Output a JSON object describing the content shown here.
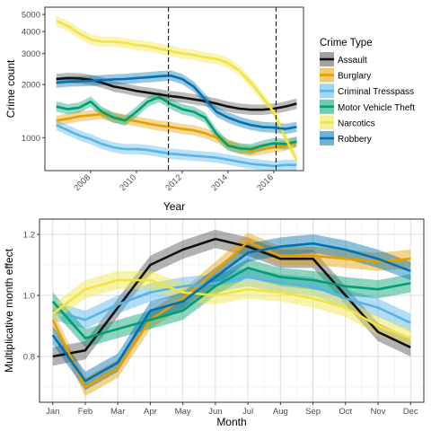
{
  "chart_data": [
    {
      "type": "line",
      "xlabel": "Year",
      "ylabel": "Crime count",
      "y_scale": "log",
      "xlim": [
        2006.0,
        2017.3
      ],
      "ylim": [
        650,
        5500
      ],
      "x_ticks": [
        2008,
        2010,
        2012,
        2014,
        2016
      ],
      "x_tick_labels": [
        "2008",
        "2010",
        "2012",
        "2014",
        "2016"
      ],
      "y_ticks": [
        1000,
        2000,
        3000,
        4000,
        5000
      ],
      "y_tick_labels": [
        "1000",
        "2000",
        "3000",
        "4000",
        "5000"
      ],
      "vlines": [
        2011.4,
        2016.1
      ],
      "grid": false,
      "legend_title": "Crime Type",
      "legend_position": "right",
      "series": [
        {
          "name": "Assault",
          "color": "#111111",
          "band_color": "#555555",
          "x": [
            2006.5,
            2007,
            2007.5,
            2008,
            2008.5,
            2009,
            2009.5,
            2010,
            2010.5,
            2011,
            2011.5,
            2012,
            2012.5,
            2013,
            2013.5,
            2014,
            2014.5,
            2015,
            2015.5,
            2016,
            2016.5,
            2017
          ],
          "y": [
            2150,
            2180,
            2170,
            2130,
            2050,
            1950,
            1900,
            1840,
            1800,
            1760,
            1720,
            1690,
            1650,
            1610,
            1560,
            1500,
            1460,
            1440,
            1440,
            1460,
            1500,
            1560
          ]
        },
        {
          "name": "Burglary",
          "color": "#e69f00",
          "band_color": "#e69f00",
          "x": [
            2006.5,
            2007,
            2007.5,
            2008,
            2008.5,
            2009,
            2009.5,
            2010,
            2010.5,
            2011,
            2011.5,
            2012,
            2012.5,
            2013,
            2013.5,
            2014,
            2014.5,
            2015,
            2015.5,
            2016,
            2016.5,
            2017
          ],
          "y": [
            1250,
            1280,
            1320,
            1340,
            1360,
            1300,
            1270,
            1240,
            1200,
            1170,
            1150,
            1120,
            1100,
            1060,
            1000,
            920,
            860,
            840,
            860,
            880,
            900,
            940
          ]
        },
        {
          "name": "Criminal Tresspass",
          "color": "#56b4e9",
          "band_color": "#56b4e9",
          "x": [
            2006.5,
            2007,
            2007.5,
            2008,
            2008.5,
            2009,
            2009.5,
            2010,
            2010.5,
            2011,
            2011.5,
            2012,
            2012.5,
            2013,
            2013.5,
            2014,
            2014.5,
            2015,
            2015.5,
            2016,
            2016.5,
            2017
          ],
          "y": [
            1180,
            1100,
            1030,
            980,
            920,
            880,
            860,
            860,
            850,
            830,
            810,
            800,
            790,
            780,
            770,
            750,
            730,
            710,
            700,
            690,
            700,
            700
          ]
        },
        {
          "name": "Motor Vehicle Theft",
          "color": "#009e73",
          "band_color": "#009e73",
          "x": [
            2006.5,
            2007,
            2007.5,
            2008,
            2008.5,
            2009,
            2009.5,
            2010,
            2010.5,
            2011,
            2011.5,
            2012,
            2012.5,
            2013,
            2013.5,
            2014,
            2014.5,
            2015,
            2015.5,
            2016,
            2016.5,
            2017
          ],
          "y": [
            1500,
            1450,
            1480,
            1600,
            1400,
            1300,
            1250,
            1400,
            1600,
            1700,
            1550,
            1450,
            1400,
            1300,
            1050,
            900,
            870,
            860,
            900,
            930,
            920,
            950
          ]
        },
        {
          "name": "Narcotics",
          "color": "#f0e442",
          "band_color": "#f0e442",
          "x": [
            2006.5,
            2007,
            2007.5,
            2008,
            2008.5,
            2009,
            2009.5,
            2010,
            2010.5,
            2011,
            2011.5,
            2012,
            2012.5,
            2013,
            2013.5,
            2014,
            2014.5,
            2015,
            2015.5,
            2016,
            2016.5,
            2017
          ],
          "y": [
            4600,
            4300,
            3900,
            3600,
            3500,
            3500,
            3450,
            3350,
            3300,
            3200,
            3100,
            3000,
            2950,
            2850,
            2800,
            2650,
            2400,
            2050,
            1700,
            1400,
            1000,
            750
          ]
        },
        {
          "name": "Robbery",
          "color": "#0072b2",
          "band_color": "#0072b2",
          "x": [
            2006.5,
            2007,
            2007.5,
            2008,
            2008.5,
            2009,
            2009.5,
            2010,
            2010.5,
            2011,
            2011.5,
            2012,
            2012.5,
            2013,
            2013.5,
            2014,
            2014.5,
            2015,
            2015.5,
            2016,
            2016.5,
            2017
          ],
          "y": [
            2050,
            2080,
            2090,
            2100,
            2120,
            2140,
            2150,
            2180,
            2200,
            2230,
            2250,
            2150,
            1950,
            1650,
            1400,
            1300,
            1230,
            1180,
            1150,
            1140,
            1120,
            1150
          ]
        }
      ]
    },
    {
      "type": "line",
      "xlabel": "Month",
      "ylabel": "Multiplicative month effect",
      "ylim": [
        0.65,
        1.25
      ],
      "y_ticks": [
        0.8,
        1.0,
        1.2
      ],
      "y_tick_labels": [
        "0.8",
        "1.0",
        "1.2"
      ],
      "categories": [
        "Jan",
        "Feb",
        "Mar",
        "Apr",
        "May",
        "Jun",
        "Jul",
        "Aug",
        "Sep",
        "Oct",
        "Nov",
        "Dec"
      ],
      "grid": true,
      "series": [
        {
          "name": "Assault",
          "color": "#111111",
          "band_color": "#555555",
          "values": [
            0.8,
            0.82,
            0.96,
            1.1,
            1.15,
            1.185,
            1.16,
            1.12,
            1.12,
            1.0,
            0.88,
            0.83
          ]
        },
        {
          "name": "Burglary",
          "color": "#e69f00",
          "band_color": "#e69f00",
          "values": [
            0.92,
            0.7,
            0.76,
            0.92,
            0.99,
            1.08,
            1.175,
            1.13,
            1.13,
            1.12,
            1.11,
            1.12
          ]
        },
        {
          "name": "Criminal Tresspass",
          "color": "#56b4e9",
          "band_color": "#56b4e9",
          "values": [
            0.95,
            0.92,
            0.97,
            1.01,
            1.03,
            1.04,
            1.06,
            1.04,
            1.03,
            0.99,
            0.96,
            0.91
          ]
        },
        {
          "name": "Motor Vehicle Theft",
          "color": "#009e73",
          "band_color": "#009e73",
          "values": [
            0.98,
            0.86,
            0.89,
            0.92,
            0.95,
            1.03,
            1.09,
            1.06,
            1.05,
            1.03,
            1.02,
            1.04
          ]
        },
        {
          "name": "Narcotics",
          "color": "#f0e442",
          "band_color": "#f0e442",
          "values": [
            0.94,
            1.02,
            1.05,
            1.05,
            1.01,
            1.0,
            1.02,
            1.01,
            0.99,
            0.96,
            0.9,
            0.86
          ]
        },
        {
          "name": "Robbery",
          "color": "#0072b2",
          "band_color": "#0072b2",
          "values": [
            0.87,
            0.72,
            0.78,
            0.95,
            0.98,
            1.06,
            1.14,
            1.16,
            1.17,
            1.15,
            1.12,
            1.08
          ]
        }
      ]
    }
  ]
}
